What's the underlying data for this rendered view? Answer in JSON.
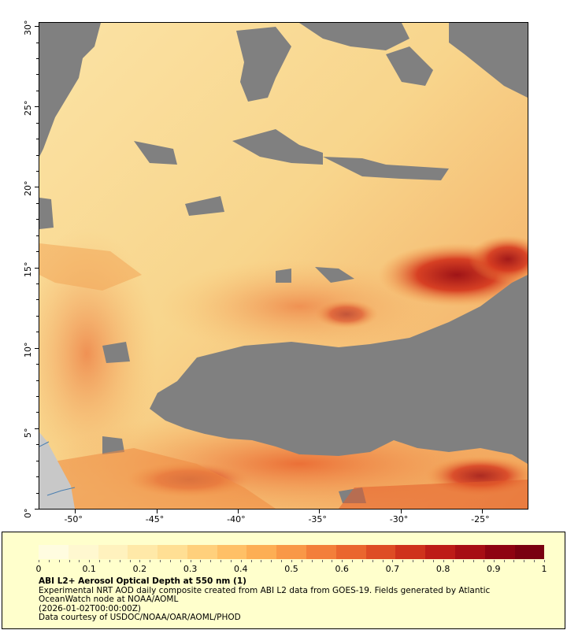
{
  "map": {
    "x_axis": {
      "ticks": [
        "-50°",
        "-45°",
        "-40°",
        "-35°",
        "-30°",
        "-25°"
      ],
      "values": [
        -50,
        -45,
        -40,
        -35,
        -30,
        -25
      ],
      "range": [
        -52.2,
        -22.2
      ]
    },
    "y_axis": {
      "ticks": [
        "0°",
        "5°",
        "10°",
        "15°",
        "20°",
        "25°",
        "30°"
      ],
      "values": [
        0,
        5,
        10,
        15,
        20,
        25,
        30
      ],
      "range": [
        0,
        30.2
      ]
    },
    "colors": {
      "no_data": "#808080",
      "land": "#c8c8c8",
      "coastline": "#4a7fb0"
    }
  },
  "legend": {
    "ticks": [
      "0",
      "0.1",
      "0.2",
      "0.3",
      "0.4",
      "0.5",
      "0.6",
      "0.7",
      "0.8",
      "0.9",
      "1"
    ],
    "range": [
      0,
      1
    ],
    "colorscale": [
      "#fffce0",
      "#fff8d0",
      "#fff2be",
      "#ffe9a8",
      "#ffdf94",
      "#ffd07c",
      "#ffc066",
      "#fdae54",
      "#f99847",
      "#f37f3a",
      "#ea662e",
      "#de4c24",
      "#cf321c",
      "#bd1c17",
      "#a70e14",
      "#8e0311",
      "#7a0010"
    ]
  },
  "caption": {
    "title": "ABI L2+ Aerosol Optical Depth at 550 nm (1)",
    "line1": "Experimental NRT AOD daily composite created from ABI L2 data from GOES-19. Fields generated by Atlantic OceanWatch node at NOAA/AOML",
    "line2": "(2026-01-02T00:00:00Z)",
    "line3": "Data courtesy of USDOC/NOAA/OAR/AOML/PHOD"
  }
}
